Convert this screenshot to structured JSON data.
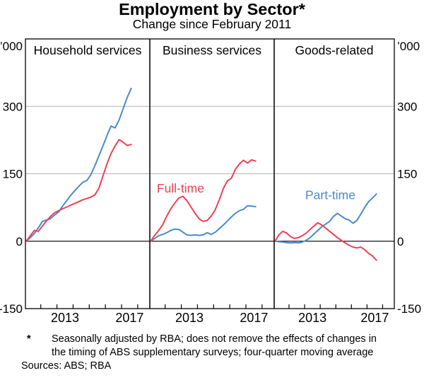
{
  "header": {
    "title": "Employment by Sector*",
    "subtitle": "Change since February 2011"
  },
  "footnote": {
    "marker": "*",
    "text": "Seasonally adjusted by RBA; does not remove the effects of changes in the timing of ABS supplementary surveys; four-quarter moving average"
  },
  "sources": "Sources: ABS; RBA",
  "chart_data": {
    "type": "line",
    "title": "Employment by Sector*",
    "subtitle": "Change since February 2011",
    "unit_label": "’000",
    "legend_position": "in-panel annotations",
    "grid": "horizontal gridlines at 150 and 300, dark zero line",
    "colors": {
      "full_time": "#ee4156",
      "part_time": "#4a8bcd",
      "grid": "#b3b3b3",
      "zero": "#3a3a3a",
      "frame": "#000000"
    },
    "y_axis": {
      "min": -150,
      "max": 450,
      "gridlines": [
        150,
        300
      ],
      "labels": [
        {
          "text": "300",
          "v": 300
        },
        {
          "text": "150",
          "v": 150
        },
        {
          "text": "0",
          "v": 0
        },
        {
          "text": "-150",
          "v": -150
        }
      ]
    },
    "x_axis": {
      "min": 2011.05,
      "max": 2018.75,
      "ticks": [
        2012,
        2013,
        2014,
        2015,
        2016,
        2017,
        2018
      ],
      "tick_labels": [
        {
          "text": "2013",
          "at": 2013.5
        },
        {
          "text": "2017",
          "at": 2017.5
        }
      ]
    },
    "x": [
      2011.1,
      2011.35,
      2011.6,
      2011.85,
      2012.1,
      2012.35,
      2012.6,
      2012.85,
      2013.1,
      2013.35,
      2013.6,
      2013.85,
      2014.1,
      2014.35,
      2014.6,
      2014.85,
      2015.1,
      2015.35,
      2015.6,
      2015.85,
      2016.1,
      2016.35,
      2016.6,
      2016.85,
      2017.1,
      2017.35,
      2017.6
    ],
    "panels": [
      {
        "title": "Household services",
        "series": {
          "part_time": [
            0,
            8,
            17,
            30,
            44,
            47,
            50,
            58,
            65,
            78,
            90,
            102,
            112,
            122,
            131,
            135,
            148,
            168,
            190,
            212,
            235,
            256,
            252,
            270,
            295,
            320,
            340
          ],
          "full_time": [
            0,
            12,
            24,
            22,
            34,
            45,
            55,
            63,
            68,
            72,
            76,
            80,
            84,
            88,
            92,
            95,
            98,
            103,
            118,
            145,
            172,
            195,
            212,
            226,
            220,
            213,
            215
          ]
        }
      },
      {
        "title": "Business services",
        "annotation": {
          "text": "Full-time",
          "series": "full_time",
          "x": 2012.95,
          "y": 118
        },
        "series": {
          "part_time": [
            0,
            6,
            12,
            15,
            19,
            24,
            27,
            26,
            20,
            14,
            13,
            14,
            13,
            14,
            19,
            15,
            20,
            28,
            36,
            45,
            54,
            62,
            68,
            71,
            79,
            78,
            77
          ],
          "full_time": [
            0,
            13,
            24,
            37,
            56,
            72,
            85,
            96,
            100,
            90,
            76,
            62,
            50,
            44,
            46,
            56,
            70,
            92,
            117,
            134,
            140,
            160,
            172,
            180,
            174,
            181,
            178
          ]
        }
      },
      {
        "title": "Goods-related",
        "annotation": {
          "text": "Part-time",
          "series": "part_time",
          "x": 2014.65,
          "y": 103
        },
        "series": {
          "part_time": [
            0,
            -1,
            -2,
            -3,
            -4,
            -3,
            -4,
            -2,
            2,
            8,
            16,
            24,
            32,
            38,
            44,
            55,
            62,
            56,
            50,
            47,
            40,
            46,
            60,
            75,
            88,
            96,
            105
          ],
          "full_time": [
            0,
            14,
            22,
            18,
            10,
            6,
            8,
            12,
            18,
            26,
            34,
            41,
            36,
            29,
            22,
            15,
            8,
            2,
            -4,
            -9,
            -13,
            -15,
            -13,
            -19,
            -27,
            -33,
            -42
          ]
        }
      }
    ]
  }
}
